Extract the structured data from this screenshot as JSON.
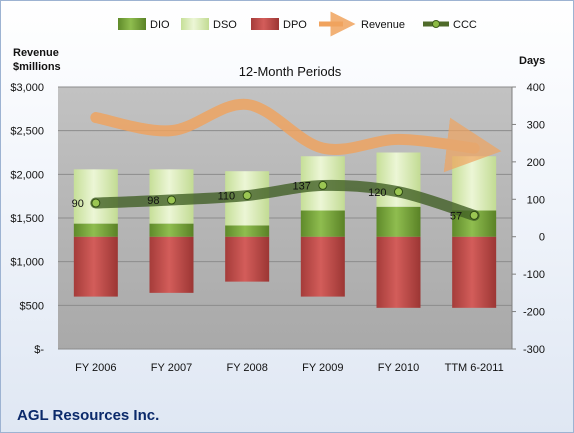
{
  "chart_data": {
    "type": "bar",
    "title": "12-Month Periods",
    "company": "AGL Resources Inc.",
    "left_axis": {
      "title_line1": "Revenue",
      "title_line2": "$millions",
      "range": [
        0,
        3000
      ],
      "ticks": [
        0,
        500,
        1000,
        1500,
        2000,
        2500,
        3000
      ],
      "tick_labels": [
        "$-",
        "$500",
        "$1,000",
        "$1,500",
        "$2,000",
        "$2,500",
        "$3,000"
      ]
    },
    "right_axis": {
      "title": "Days",
      "range": [
        -300,
        400
      ],
      "ticks": [
        -300,
        -200,
        -100,
        0,
        100,
        200,
        300,
        400
      ],
      "tick_labels": [
        "-300",
        "-200",
        "-100",
        "0",
        "100",
        "200",
        "300",
        "400"
      ]
    },
    "categories": [
      "FY 2006",
      "FY 2007",
      "FY 2008",
      "FY 2009",
      "FY 2010",
      "TTM 6-2011"
    ],
    "series": [
      {
        "name": "DIO",
        "axis": "right",
        "kind": "stacked-bar",
        "values": [
          35,
          35,
          30,
          70,
          80,
          70
        ]
      },
      {
        "name": "DSO",
        "axis": "right",
        "kind": "stacked-bar",
        "values": [
          145,
          145,
          145,
          145,
          145,
          145
        ]
      },
      {
        "name": "DPO",
        "axis": "right",
        "kind": "negative-bar",
        "values": [
          -160,
          -150,
          -120,
          -160,
          -190,
          -190
        ]
      },
      {
        "name": "Revenue",
        "axis": "left",
        "kind": "line",
        "values": [
          2650,
          2500,
          2800,
          2300,
          2400,
          2300
        ]
      },
      {
        "name": "CCC",
        "axis": "right",
        "kind": "line",
        "values": [
          90,
          98,
          110,
          137,
          120,
          57
        ]
      }
    ],
    "ccc_labels": [
      "90",
      "98",
      "110",
      "137",
      "120",
      "57"
    ],
    "grid": true,
    "legend_position": "top",
    "colors": {
      "DIO": "#77a33a",
      "DSO": "#d7ebb2",
      "DPO": "#c0504d",
      "Revenue": "#f0a35e",
      "CCC": "#4f6b2a",
      "plot_bg": "#b3b3b3"
    }
  }
}
